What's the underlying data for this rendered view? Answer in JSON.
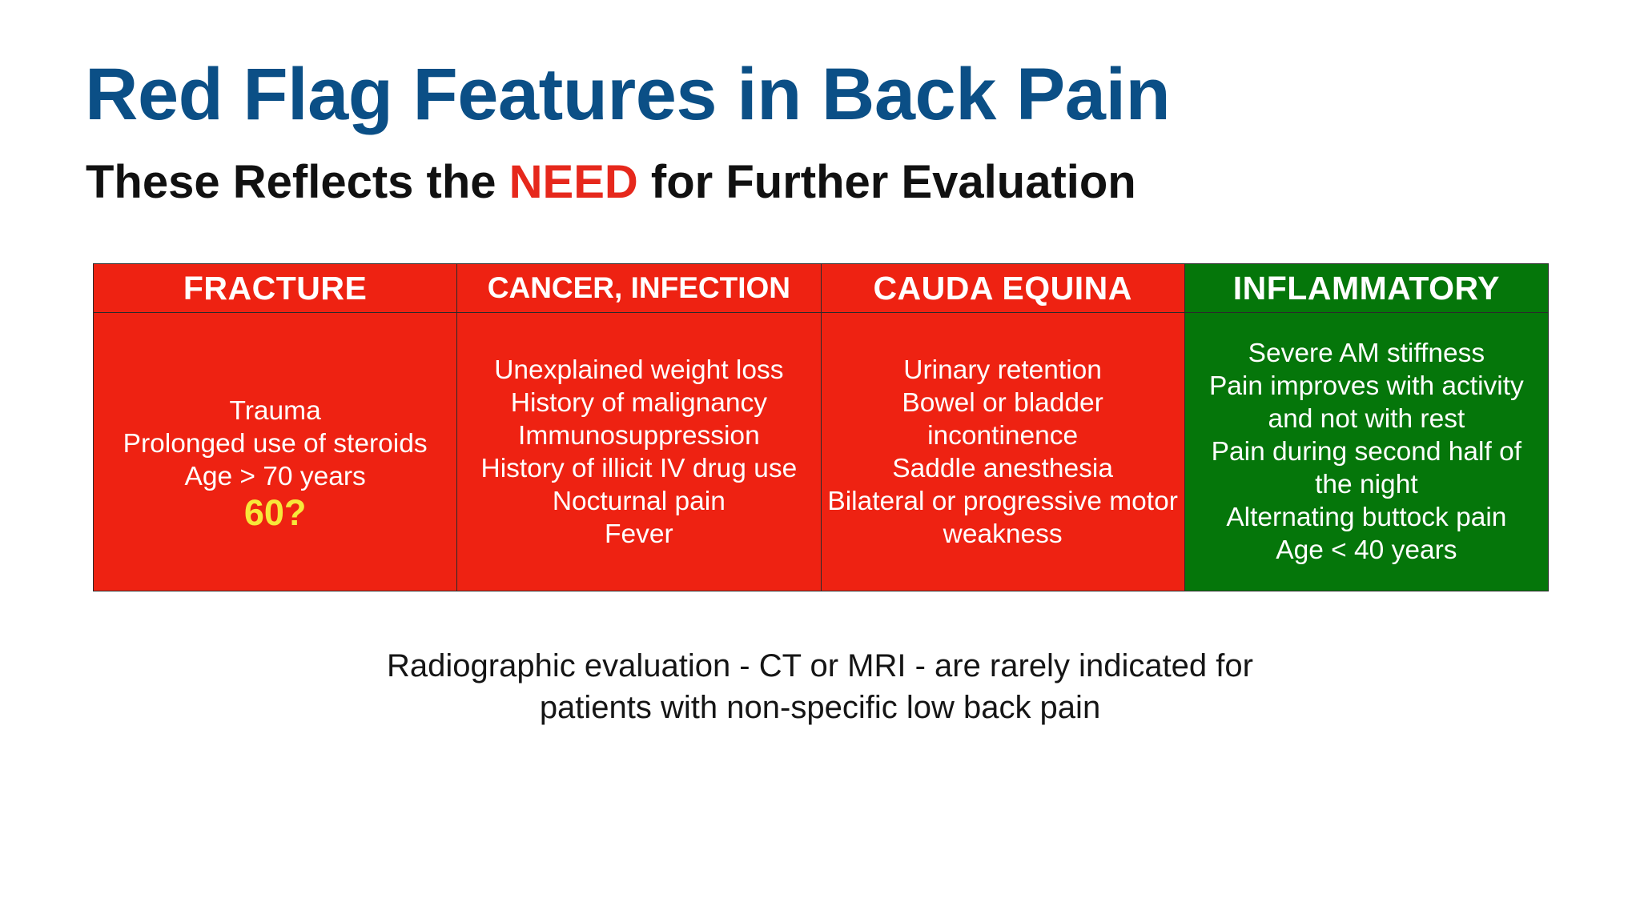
{
  "slide": {
    "title": "Red Flag Features in Back Pain",
    "subtitle": {
      "before": "These Reflects the ",
      "accent": "NEED",
      "after": " for Further Evaluation"
    },
    "colors": {
      "title": "#0b4f86",
      "accent": "#e6281c",
      "red_column": "#ee2212",
      "green_column": "#05760a",
      "question": "#f7e73a"
    },
    "columns": [
      {
        "header": "FRACTURE",
        "color": "red",
        "lines": [
          "Trauma",
          "Prolonged use of steroids",
          "Age > 70 years"
        ],
        "question": "60?"
      },
      {
        "header": "CANCER, INFECTION",
        "color": "red",
        "lines": [
          "Unexplained weight loss",
          "History of malignancy",
          "Immunosuppression",
          "History of illicit IV drug use",
          "Nocturnal pain",
          "Fever"
        ]
      },
      {
        "header": "CAUDA EQUINA",
        "color": "red",
        "lines": [
          "Urinary retention",
          "Bowel or bladder incontinence",
          "Saddle anesthesia",
          "Bilateral or progressive motor weakness"
        ]
      },
      {
        "header": "INFLAMMATORY",
        "color": "green",
        "lines": [
          "Severe AM stiffness",
          "Pain improves with activity and not with rest",
          "Pain during second half of the night",
          "Alternating buttock pain",
          "Age < 40 years"
        ]
      }
    ],
    "footnote": {
      "line1": "Radiographic evaluation - CT or MRI - are rarely indicated for",
      "line2": "patients with non-specific low back pain"
    }
  }
}
